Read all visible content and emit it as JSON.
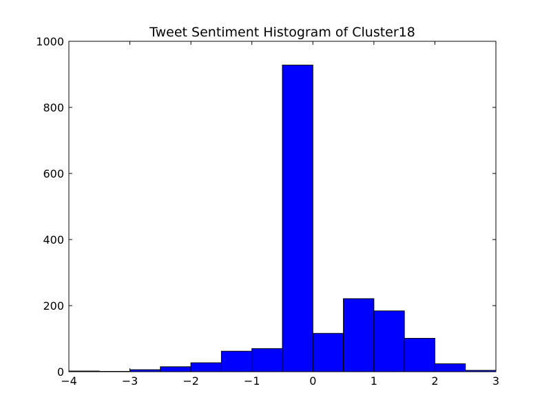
{
  "chart_data": {
    "type": "bar",
    "title": "Tweet Sentiment Histogram of Cluster18",
    "xlabel": "",
    "ylabel": "",
    "xlim": [
      -4,
      3
    ],
    "ylim": [
      0,
      1000
    ],
    "grid": false,
    "legend": "none",
    "bar_color": "#0000ff",
    "bin_edges": [
      -4,
      -3.5,
      -3,
      -2.5,
      -2,
      -1.5,
      -1,
      -0.5,
      0,
      0.5,
      1,
      1.5,
      2,
      2.5,
      3
    ],
    "counts": [
      2,
      1,
      6,
      15,
      27,
      62,
      70,
      928,
      116,
      221,
      184,
      101,
      24,
      4
    ],
    "x_ticks": [
      -4,
      -3,
      -2,
      -1,
      0,
      1,
      2,
      3
    ],
    "x_tick_labels": [
      "−4",
      "−3",
      "−2",
      "−1",
      "0",
      "1",
      "2",
      "3"
    ],
    "y_ticks": [
      0,
      200,
      400,
      600,
      800,
      1000
    ],
    "y_tick_labels": [
      "0",
      "200",
      "400",
      "600",
      "800",
      "1000"
    ]
  }
}
